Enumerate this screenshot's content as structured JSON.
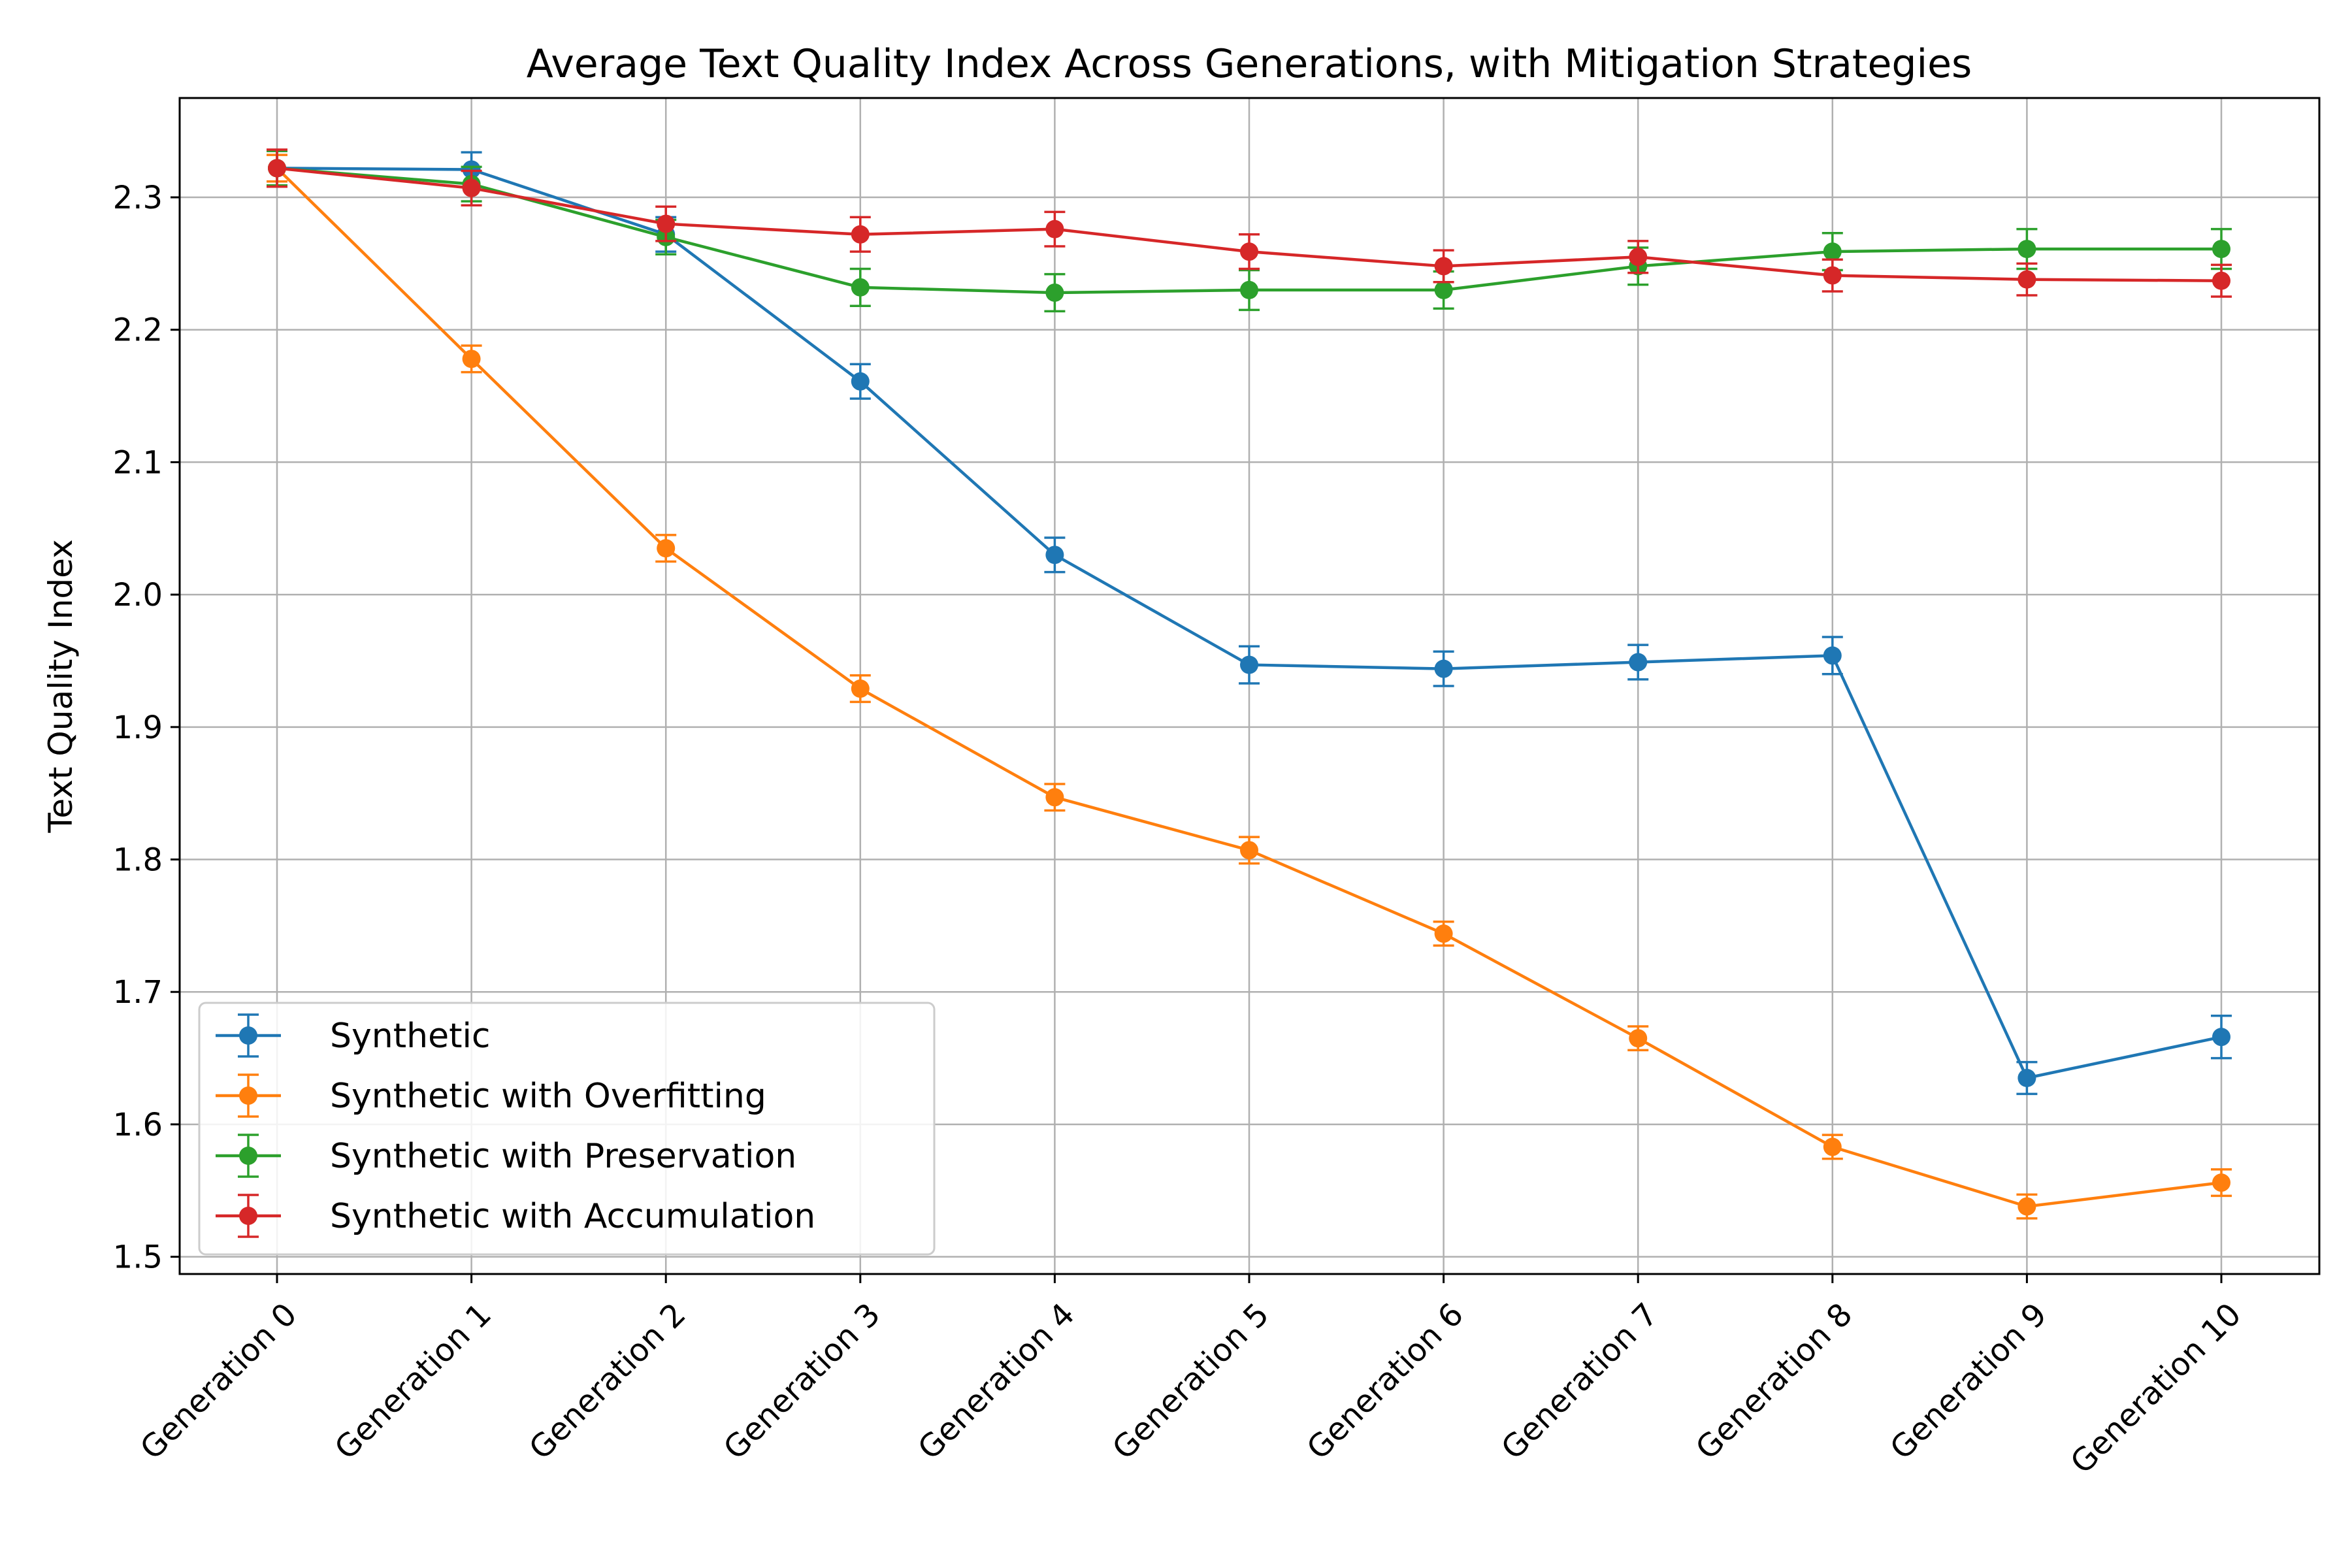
{
  "chart_data": {
    "type": "line",
    "title": "Average Text Quality Index Across Generations, with Mitigation Strategies",
    "xlabel": "",
    "ylabel": "Text Quality Index",
    "categories": [
      "Generation 0",
      "Generation 1",
      "Generation 2",
      "Generation 3",
      "Generation 4",
      "Generation 5",
      "Generation 6",
      "Generation 7",
      "Generation 8",
      "Generation 9",
      "Generation 10"
    ],
    "ylim": [
      1.487,
      2.375
    ],
    "yticks": [
      1.5,
      1.6,
      1.7,
      1.8,
      1.9,
      2.0,
      2.1,
      2.2,
      2.3
    ],
    "ytick_labels": [
      "1.5",
      "1.6",
      "1.7",
      "1.8",
      "1.9",
      "2.0",
      "2.1",
      "2.2",
      "2.3"
    ],
    "grid": true,
    "legend_position": "lower-left",
    "series": [
      {
        "name": "Synthetic",
        "color": "#1f77b4",
        "values": [
          2.322,
          2.321,
          2.272,
          2.161,
          2.03,
          1.947,
          1.944,
          1.949,
          1.954,
          1.635,
          1.666
        ],
        "errors": [
          0.013,
          0.013,
          0.013,
          0.013,
          0.013,
          0.014,
          0.013,
          0.013,
          0.014,
          0.012,
          0.016
        ]
      },
      {
        "name": "Synthetic with Overfitting",
        "color": "#ff7f0e",
        "values": [
          2.322,
          2.178,
          2.035,
          1.929,
          1.847,
          1.807,
          1.744,
          1.665,
          1.583,
          1.538,
          1.556
        ],
        "errors": [
          0.01,
          0.01,
          0.01,
          0.01,
          0.01,
          0.01,
          0.009,
          0.009,
          0.009,
          0.009,
          0.01
        ]
      },
      {
        "name": "Synthetic with Preservation",
        "color": "#2ca02c",
        "values": [
          2.322,
          2.31,
          2.27,
          2.232,
          2.228,
          2.23,
          2.23,
          2.248,
          2.259,
          2.261,
          2.261
        ],
        "errors": [
          0.013,
          0.013,
          0.013,
          0.014,
          0.014,
          0.015,
          0.014,
          0.014,
          0.014,
          0.015,
          0.015
        ]
      },
      {
        "name": "Synthetic with Accumulation",
        "color": "#d62728",
        "values": [
          2.322,
          2.307,
          2.28,
          2.272,
          2.276,
          2.259,
          2.248,
          2.255,
          2.241,
          2.238,
          2.237
        ],
        "errors": [
          0.014,
          0.013,
          0.013,
          0.013,
          0.013,
          0.013,
          0.012,
          0.012,
          0.012,
          0.012,
          0.012
        ]
      }
    ]
  }
}
